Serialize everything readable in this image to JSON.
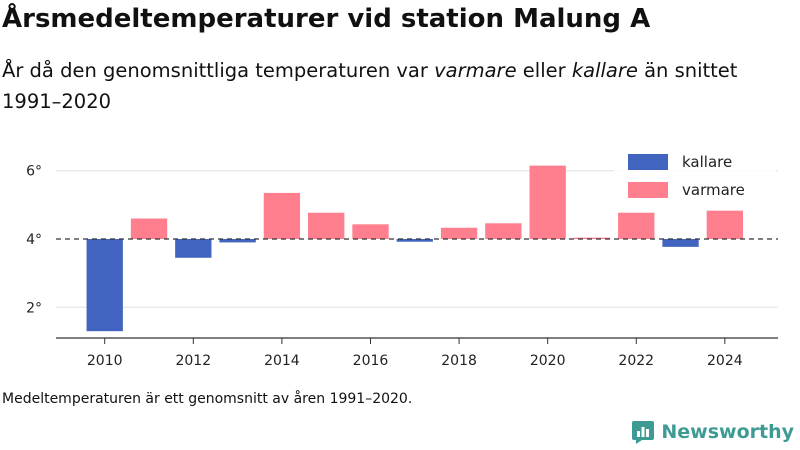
{
  "header": {
    "title": "Årsmedeltemperaturer vid station Malung A",
    "subtitle_part1": "År då den genomsnittliga temperaturen var ",
    "subtitle_warm": "varmare",
    "subtitle_part2": " eller ",
    "subtitle_cold": "kallare",
    "subtitle_part3": " än snittet 1991–2020"
  },
  "footnote": "Medeltemperaturen är ett genomsnitt av åren 1991–2020.",
  "brand": {
    "name": "Newsworthy",
    "icon": "newsworthy-logo-icon"
  },
  "colors": {
    "kallare": "#4064bf",
    "varmare": "#ff7f8f",
    "grid": "#e0e0e0",
    "axis": "#333333",
    "brand": "#3e9b93"
  },
  "chart_data": {
    "type": "bar",
    "baseline": 4.0,
    "baseline_style": "dashed",
    "xlim": [
      2008.9,
      2025.2
    ],
    "ylim": [
      1.1,
      6.9
    ],
    "x_ticks": [
      2010,
      2012,
      2014,
      2016,
      2018,
      2020,
      2022,
      2024
    ],
    "x_tick_labels": [
      "2010",
      "2012",
      "2014",
      "2016",
      "2018",
      "2020",
      "2022",
      "2024"
    ],
    "y_ticks": [
      2,
      4,
      6
    ],
    "y_tick_labels": [
      "2°",
      "4°",
      "6°"
    ],
    "grid": "horizontal",
    "legend_position": "top-right",
    "legend": [
      {
        "key": "kallare",
        "label": "kallare"
      },
      {
        "key": "varmare",
        "label": "varmare"
      }
    ],
    "years": [
      2010,
      2011,
      2012,
      2013,
      2014,
      2015,
      2016,
      2017,
      2018,
      2019,
      2020,
      2021,
      2022,
      2023,
      2024
    ],
    "values": [
      1.3,
      4.6,
      3.45,
      3.9,
      5.35,
      4.77,
      4.43,
      3.92,
      4.33,
      4.46,
      6.15,
      4.04,
      4.77,
      3.77,
      4.83
    ]
  }
}
